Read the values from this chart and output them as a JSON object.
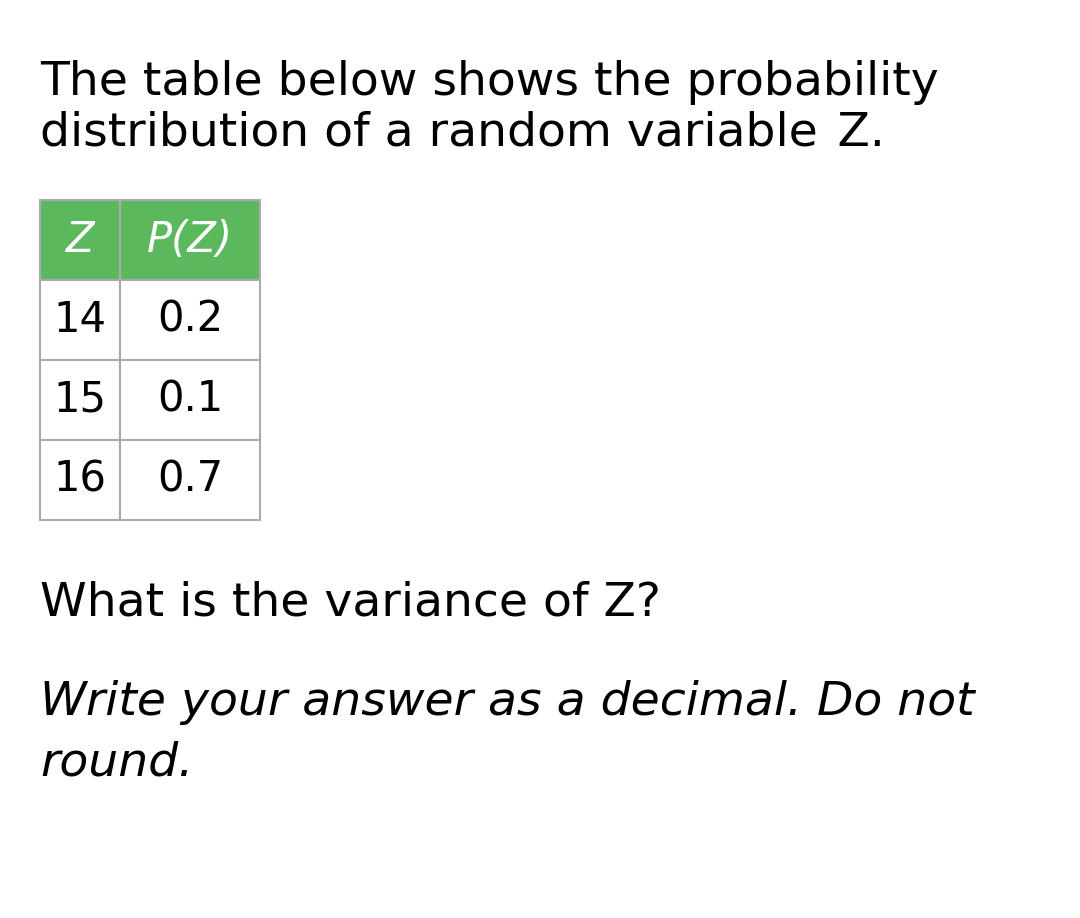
{
  "background_color": "#ffffff",
  "title_line1": "The table below shows the probability",
  "title_line2": "distribution of a random variable  Z.",
  "title_fontsize": 34,
  "title_color": "#000000",
  "table_headers": [
    "Z",
    "P(Z)"
  ],
  "table_rows": [
    [
      "14",
      "0.2"
    ],
    [
      "15",
      "0.1"
    ],
    [
      "16",
      "0.7"
    ]
  ],
  "header_bg_color": "#5cb85c",
  "header_text_color": "#ffffff",
  "header_fontsize": 30,
  "cell_fontsize": 30,
  "cell_text_color": "#000000",
  "cell_bg_color": "#ffffff",
  "grid_color": "#aaaaaa",
  "question_text": "What is the variance of Z?",
  "question_fontsize": 34,
  "question_color": "#000000",
  "instruction_line1": "Write your answer as a decimal. Do not",
  "instruction_line2": "round.",
  "instruction_fontsize": 34,
  "instruction_color": "#000000",
  "fig_width": 10.8,
  "fig_height": 9.18,
  "dpi": 100
}
